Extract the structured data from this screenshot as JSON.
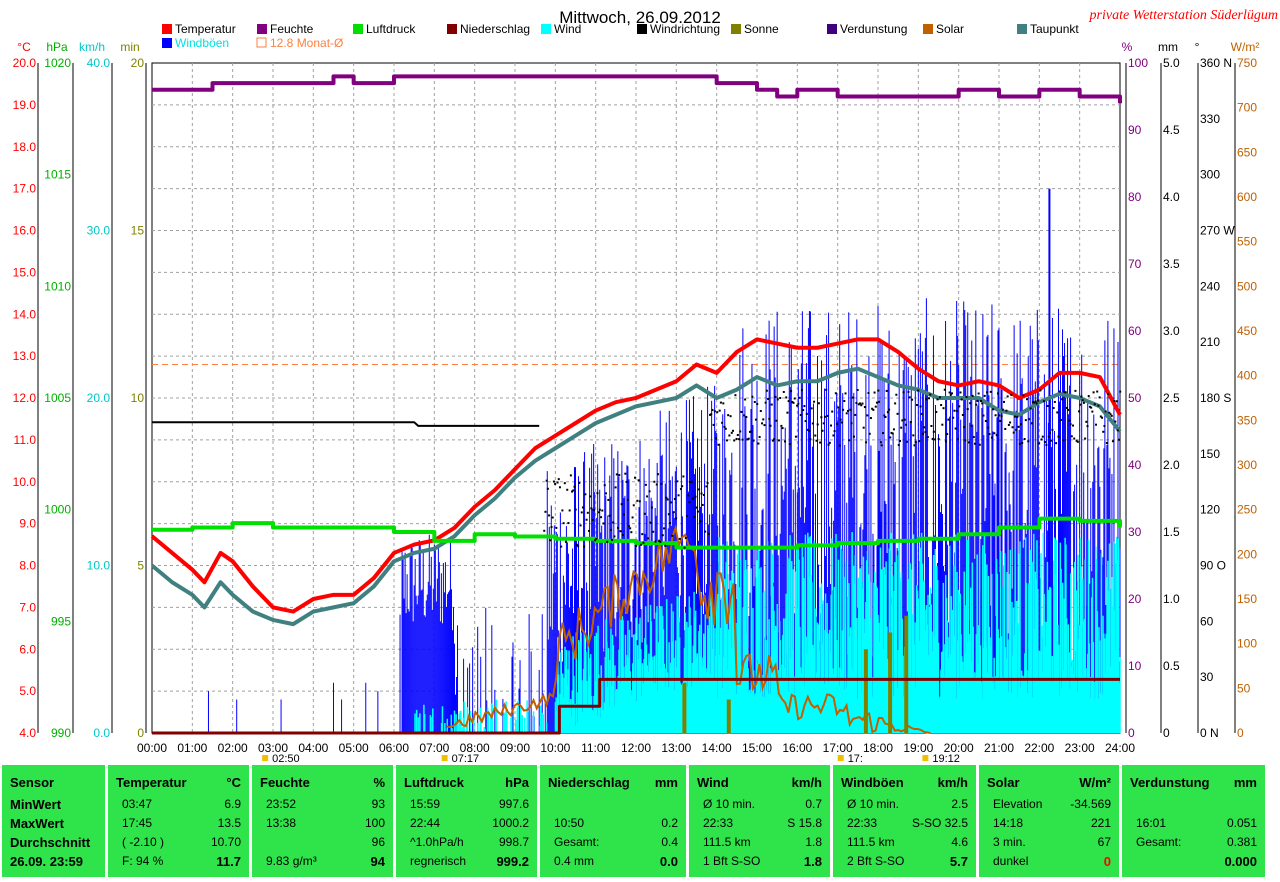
{
  "chart_data": {
    "type": "line",
    "title": "Mittwoch, 26.09.2012",
    "station": "private Wetterstation Süderlügum",
    "x_ticks": [
      "00:00",
      "01:00",
      "02:00",
      "03:00",
      "04:00",
      "05:00",
      "06:00",
      "07:00",
      "08:00",
      "09:00",
      "10:00",
      "11:00",
      "12:00",
      "13:00",
      "14:00",
      "15:00",
      "16:00",
      "17:00",
      "18:00",
      "19:00",
      "20:00",
      "21:00",
      "22:00",
      "23:00",
      "24:00"
    ],
    "sun_events": [
      "02:50",
      "07:17",
      "17:",
      "19:12"
    ],
    "legend": [
      {
        "name": "Temperatur",
        "color": "#ff0000"
      },
      {
        "name": "Feuchte",
        "color": "#800080"
      },
      {
        "name": "Luftdruck",
        "color": "#00e000"
      },
      {
        "name": "Niederschlag",
        "color": "#800000"
      },
      {
        "name": "Wind",
        "color": "#00ffff"
      },
      {
        "name": "Windrichtung",
        "color": "#000000"
      },
      {
        "name": "Sonne",
        "color": "#808000"
      },
      {
        "name": "Verdunstung",
        "color": "#400080"
      },
      {
        "name": "Solar",
        "color": "#c06000"
      },
      {
        "name": "Taupunkt",
        "color": "#408080"
      },
      {
        "name": "Windböen",
        "color": "#0000ff"
      },
      {
        "name": "12.8 Monat-Ø",
        "color": "#ff8040"
      }
    ],
    "axes": {
      "temp": {
        "label": "°C",
        "ticks": [
          "20.0",
          "19.0",
          "18.0",
          "17.0",
          "16.0",
          "15.0",
          "14.0",
          "13.0",
          "12.0",
          "11.0",
          "10.0",
          "9.0",
          "8.0",
          "7.0",
          "6.0",
          "5.0",
          "4.0"
        ],
        "min": 4,
        "max": 20,
        "color": "#ff0000"
      },
      "pressure": {
        "label": "hPa",
        "ticks": [
          "1020",
          "1015",
          "1010",
          "1005",
          "1000",
          "995",
          "990"
        ],
        "min": 990,
        "max": 1020,
        "color": "#00c000"
      },
      "wind": {
        "label": "km/h",
        "ticks": [
          "40.0",
          "30.0",
          "20.0",
          "10.0",
          "0.0"
        ],
        "min": 0,
        "max": 40,
        "color": "#00c0c0"
      },
      "sun": {
        "label": "min",
        "ticks": [
          "20",
          "15",
          "10",
          "5",
          "0"
        ],
        "min": 0,
        "max": 20,
        "color": "#808000"
      },
      "humidity": {
        "label": "%",
        "ticks": [
          "100",
          "90",
          "80",
          "70",
          "60",
          "50",
          "40",
          "30",
          "20",
          "10",
          "0"
        ],
        "min": 0,
        "max": 100,
        "color": "#800080"
      },
      "rain": {
        "label": "mm",
        "ticks": [
          "5.0",
          "4.5",
          "4.0",
          "3.5",
          "3.0",
          "2.5",
          "2.0",
          "1.5",
          "1.0",
          "0.5",
          "0"
        ],
        "min": 0,
        "max": 5,
        "color": "#000000"
      },
      "direction": {
        "label": "°",
        "ticks": [
          "360 N",
          "330",
          "300",
          "270 W",
          "240",
          "210",
          "180 S",
          "150",
          "120",
          "90 O",
          "60",
          "30",
          "0 N"
        ],
        "min": 0,
        "max": 360,
        "color": "#000000"
      },
      "solar": {
        "label": "W/m²",
        "ticks": [
          "750",
          "700",
          "650",
          "600",
          "550",
          "500",
          "450",
          "400",
          "350",
          "300",
          "250",
          "200",
          "150",
          "100",
          "50",
          "0"
        ],
        "min": 0,
        "max": 750,
        "color": "#c06000"
      }
    },
    "monthly_avg_temp": 12.8,
    "series": [
      {
        "name": "Temperatur",
        "axis": "temp",
        "color": "#ff0000",
        "x": [
          0,
          0.5,
          1,
          1.3,
          1.7,
          2,
          2.5,
          3,
          3.5,
          4,
          4.5,
          5,
          5.5,
          6,
          6.5,
          7,
          7.5,
          8,
          8.5,
          9,
          9.5,
          10,
          10.5,
          11,
          11.5,
          12,
          12.5,
          13,
          13.5,
          14,
          14.5,
          15,
          15.5,
          16,
          16.5,
          17,
          17.5,
          18,
          18.5,
          19,
          19.5,
          20,
          20.5,
          21,
          21.5,
          22,
          22.5,
          23,
          23.5,
          24
        ],
        "y": [
          8.7,
          8.3,
          7.9,
          7.6,
          8.3,
          8.1,
          7.5,
          7.0,
          6.9,
          7.2,
          7.3,
          7.3,
          7.7,
          8.3,
          8.5,
          8.6,
          8.9,
          9.4,
          9.8,
          10.3,
          10.8,
          11.1,
          11.4,
          11.7,
          11.9,
          12.0,
          12.2,
          12.4,
          12.8,
          12.6,
          13.1,
          13.4,
          13.3,
          13.2,
          13.2,
          13.3,
          13.4,
          13.4,
          13.1,
          12.7,
          12.4,
          12.3,
          12.4,
          12.3,
          12.0,
          12.2,
          12.6,
          12.6,
          12.5,
          11.6
        ]
      },
      {
        "name": "Taupunkt",
        "axis": "temp",
        "color": "#408080",
        "x": [
          0,
          0.5,
          1,
          1.3,
          1.7,
          2,
          2.5,
          3,
          3.5,
          4,
          4.5,
          5,
          5.5,
          6,
          6.5,
          7,
          7.5,
          8,
          8.5,
          9,
          9.5,
          10,
          10.5,
          11,
          11.5,
          12,
          12.5,
          13,
          13.5,
          14,
          14.5,
          15,
          15.5,
          16,
          16.5,
          17,
          17.5,
          18,
          18.5,
          19,
          19.5,
          20,
          20.5,
          21,
          21.5,
          22,
          22.5,
          23,
          23.5,
          24
        ],
        "y": [
          8.0,
          7.6,
          7.3,
          7.0,
          7.6,
          7.3,
          6.9,
          6.7,
          6.6,
          6.9,
          7.0,
          7.1,
          7.5,
          8.1,
          8.3,
          8.4,
          8.7,
          9.2,
          9.6,
          10.1,
          10.5,
          10.8,
          11.1,
          11.4,
          11.6,
          11.8,
          11.9,
          12.0,
          12.3,
          12.0,
          12.2,
          12.5,
          12.3,
          12.4,
          12.4,
          12.6,
          12.7,
          12.5,
          12.3,
          12.2,
          12.0,
          12.0,
          12.0,
          11.7,
          11.6,
          11.9,
          12.1,
          12.0,
          11.8,
          11.2
        ]
      },
      {
        "name": "Feuchte",
        "axis": "humidity",
        "color": "#800080",
        "x": [
          0,
          1,
          1.5,
          3,
          4,
          4.5,
          5,
          6,
          8,
          10,
          12,
          13.5,
          14,
          15,
          15.5,
          16,
          17,
          18,
          19,
          20,
          21,
          22,
          22.5,
          23,
          23.5,
          24
        ],
        "y": [
          96,
          96,
          97,
          97,
          97,
          98,
          97,
          98,
          98,
          98,
          98,
          98,
          97,
          96,
          95,
          96,
          95,
          95,
          95,
          96,
          95,
          96,
          96,
          95,
          95,
          94
        ]
      },
      {
        "name": "Luftdruck",
        "axis": "pressure",
        "color": "#00e000",
        "x": [
          0,
          1,
          2,
          3,
          4,
          5,
          6,
          7,
          8,
          9,
          10,
          11,
          12,
          13,
          14,
          15,
          16,
          17,
          18,
          19,
          20,
          21,
          22,
          23,
          24
        ],
        "y": [
          999.1,
          999.2,
          999.4,
          999.2,
          999.2,
          999.2,
          999.0,
          998.6,
          998.9,
          998.8,
          998.7,
          998.6,
          998.5,
          998.3,
          998.3,
          998.3,
          998.4,
          998.5,
          998.6,
          998.7,
          998.9,
          999.2,
          999.6,
          999.5,
          999.2
        ]
      },
      {
        "name": "Niederschlag",
        "axis": "rain",
        "color": "#800000",
        "x": [
          0,
          9.8,
          10.1,
          10.9,
          11.1,
          24
        ],
        "y": [
          0,
          0,
          0.2,
          0.2,
          0.4,
          0.4
        ]
      },
      {
        "name": "Windrichtung",
        "axis": "direction",
        "color": "#000000",
        "x": [
          0,
          6.5,
          6.6,
          9.6
        ],
        "y": [
          167,
          167,
          165,
          165
        ]
      }
    ],
    "bars": [
      {
        "name": "Windböen",
        "axis": "wind",
        "color": "#0000ff"
      },
      {
        "name": "Wind",
        "axis": "wind",
        "color": "#00ffff"
      },
      {
        "name": "Solar",
        "axis": "solar",
        "color": "#c06000"
      },
      {
        "name": "Sonne",
        "axis": "sun",
        "color": "#808000"
      }
    ],
    "gust_peak": {
      "x": 22.25,
      "y": 32.5
    },
    "y_ticks_extra_side": "W/m²"
  },
  "stats": {
    "sensor": {
      "header": "Sensor",
      "rows": [
        "MinWert",
        "MaxWert",
        "Durchschnitt"
      ],
      "footer": "26.09. 23:59"
    },
    "temperatur": {
      "header": "Temperatur",
      "unit": "°C",
      "rows": [
        [
          "03:47",
          "6.9"
        ],
        [
          "17:45",
          "13.5"
        ],
        [
          "( -2.10 )",
          "10.70"
        ]
      ],
      "footer": [
        "F: 94 %",
        "11.7"
      ]
    },
    "feuchte": {
      "header": "Feuchte",
      "unit": "%",
      "rows": [
        [
          "23:52",
          "93"
        ],
        [
          "13:38",
          "100"
        ],
        [
          "",
          "96"
        ]
      ],
      "footer": [
        "9.83 g/m³",
        "94"
      ]
    },
    "luftdruck": {
      "header": "Luftdruck",
      "unit": "hPa",
      "rows": [
        [
          "15:59",
          "997.6"
        ],
        [
          "22:44",
          "1000.2"
        ],
        [
          "^1.0hPa/h",
          "998.7"
        ]
      ],
      "footer": [
        "regnerisch",
        "999.2"
      ]
    },
    "niederschlag": {
      "header": "Niederschlag",
      "unit": "mm",
      "rows": [
        [
          "",
          ""
        ],
        [
          "10:50",
          "0.2"
        ],
        [
          "Gesamt:",
          "0.4"
        ]
      ],
      "footer": [
        "0.4 mm",
        "0.0"
      ]
    },
    "wind": {
      "header": "Wind",
      "unit": "km/h",
      "rows": [
        [
          "Ø 10 min.",
          "0.7"
        ],
        [
          "22:33",
          "S 15.8"
        ],
        [
          "111.5 km",
          "1.8"
        ]
      ],
      "footer": [
        "1 Bft S-SO",
        "1.8"
      ]
    },
    "windboeen": {
      "header": "Windböen",
      "unit": "km/h",
      "rows": [
        [
          "Ø 10 min.",
          "2.5"
        ],
        [
          "22:33",
          "S-SO 32.5"
        ],
        [
          "111.5 km",
          "4.6"
        ]
      ],
      "footer": [
        "2 Bft S-SO",
        "5.7"
      ]
    },
    "solar": {
      "header": "Solar",
      "unit": "W/m²",
      "rows": [
        [
          "Elevation",
          "-34.569"
        ],
        [
          "14:18",
          "221"
        ],
        [
          "3 min.",
          "67"
        ]
      ],
      "footer": [
        "dunkel",
        "0"
      ]
    },
    "verdunstung": {
      "header": "Verdunstung",
      "unit": "mm",
      "rows": [
        [
          "",
          ""
        ],
        [
          "16:01",
          "0.051"
        ],
        [
          "Gesamt:",
          "0.381"
        ]
      ],
      "footer": [
        "",
        "0.000"
      ]
    }
  }
}
